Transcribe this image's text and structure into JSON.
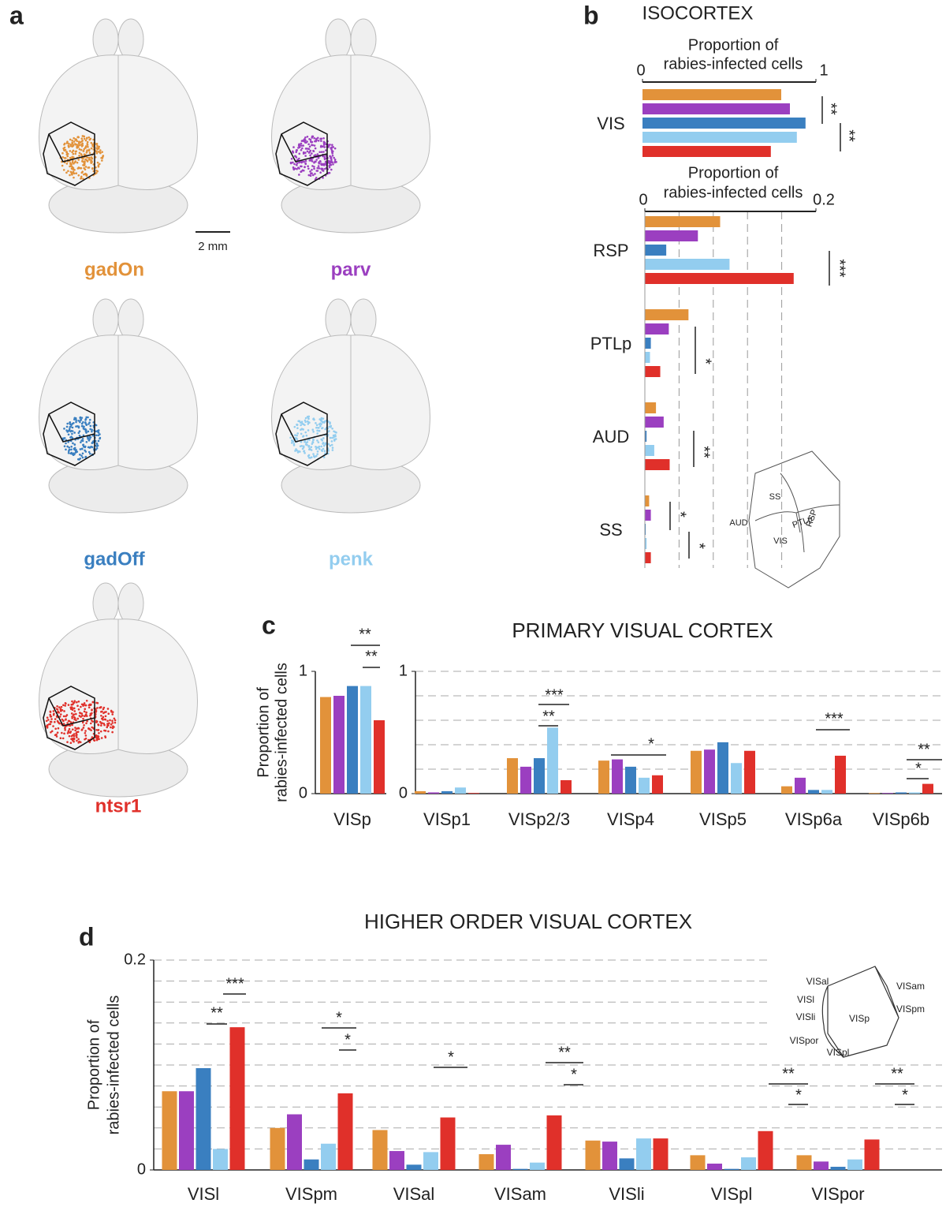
{
  "panel_labels": [
    "a",
    "b",
    "c",
    "d"
  ],
  "scale_bar": "2 mm",
  "chart_data": [
    {
      "type": "bar",
      "orientation": "horizontal",
      "title": "ISOCORTEX",
      "xlabel": [
        "Proportion of",
        "rabies-infected cells"
      ],
      "categories": [
        "VIS"
      ],
      "series": [
        {
          "name": "gadOn",
          "color": "#e2923a",
          "values": [
            0.8
          ]
        },
        {
          "name": "parv",
          "color": "#9b3fc0",
          "values": [
            0.85
          ]
        },
        {
          "name": "gadOff",
          "color": "#3a7fc0",
          "values": [
            0.94
          ]
        },
        {
          "name": "penk",
          "color": "#93cdef",
          "values": [
            0.89
          ]
        },
        {
          "name": "ntsr1",
          "color": "#e0302a",
          "values": [
            0.74
          ]
        }
      ],
      "xlim": [
        0,
        1
      ],
      "xticks": [
        0,
        1
      ],
      "annotations": [
        "**",
        "**"
      ]
    },
    {
      "type": "bar",
      "orientation": "horizontal",
      "xlabel": [
        "Proportion of",
        "rabies-infected cells"
      ],
      "categories": [
        "RSP",
        "PTLp",
        "AUD",
        "SS"
      ],
      "series": [
        {
          "color": "#e2923a",
          "values": [
            0.088,
            0.051,
            0.013,
            0.005
          ]
        },
        {
          "color": "#9b3fc0",
          "values": [
            0.062,
            0.028,
            0.022,
            0.007
          ]
        },
        {
          "color": "#3a7fc0",
          "values": [
            0.025,
            0.007,
            0.002,
            0.001
          ]
        },
        {
          "color": "#93cdef",
          "values": [
            0.099,
            0.006,
            0.011,
            0.002
          ]
        },
        {
          "color": "#e0302a",
          "values": [
            0.174,
            0.018,
            0.029,
            0.007
          ]
        }
      ],
      "xlim": [
        0,
        0.2
      ],
      "xticks": [
        0,
        0.2
      ],
      "xgrid": [
        0.04,
        0.08,
        0.12,
        0.16
      ],
      "annotations": [
        "***",
        "*",
        "**",
        "*",
        "*"
      ],
      "inset_labels": [
        "SS",
        "RSP",
        "PTLp",
        "AUD",
        "VIS"
      ]
    },
    {
      "type": "bar",
      "title": "PRIMARY VISUAL CORTEX",
      "ylabel": [
        "Proportion of",
        "rabies-infected cells"
      ],
      "categories": [
        "VISp",
        "VISp1",
        "VISp2/3",
        "VISp4",
        "VISp5",
        "VISp6a",
        "VISp6b"
      ],
      "series": [
        {
          "color": "#e2923a",
          "values": [
            0.79,
            0.02,
            0.29,
            0.27,
            0.35,
            0.06,
            0.005
          ]
        },
        {
          "color": "#9b3fc0",
          "values": [
            0.8,
            0.01,
            0.22,
            0.28,
            0.36,
            0.13,
            0.005
          ]
        },
        {
          "color": "#3a7fc0",
          "values": [
            0.88,
            0.02,
            0.29,
            0.22,
            0.42,
            0.03,
            0.01
          ]
        },
        {
          "color": "#93cdef",
          "values": [
            0.88,
            0.05,
            0.54,
            0.13,
            0.25,
            0.03,
            0.01
          ]
        },
        {
          "color": "#e0302a",
          "values": [
            0.6,
            0.005,
            0.11,
            0.15,
            0.35,
            0.31,
            0.08
          ]
        }
      ],
      "ylim": [
        0,
        1
      ],
      "yticks": [
        0,
        1
      ],
      "ygrid": [
        0.2,
        0.4,
        0.6,
        0.8,
        1
      ],
      "annotations": [
        "**",
        "**",
        "***",
        "**",
        "*",
        "***",
        "**",
        "*"
      ]
    },
    {
      "type": "bar",
      "title": "HIGHER ORDER VISUAL CORTEX",
      "ylabel": [
        "Proportion of",
        "rabies-infected cells"
      ],
      "categories": [
        "VISl",
        "VISpm",
        "VISal",
        "VISam",
        "VISli",
        "VISpl",
        "VISpor"
      ],
      "series": [
        {
          "color": "#e2923a",
          "values": [
            0.075,
            0.04,
            0.038,
            0.015,
            0.028,
            0.014,
            0.014
          ]
        },
        {
          "color": "#9b3fc0",
          "values": [
            0.075,
            0.053,
            0.018,
            0.024,
            0.027,
            0.006,
            0.008
          ]
        },
        {
          "color": "#3a7fc0",
          "values": [
            0.097,
            0.01,
            0.005,
            0.001,
            0.011,
            0.001,
            0.003
          ]
        },
        {
          "color": "#93cdef",
          "values": [
            0.02,
            0.025,
            0.017,
            0.007,
            0.03,
            0.012,
            0.01
          ]
        },
        {
          "color": "#e0302a",
          "values": [
            0.136,
            0.073,
            0.05,
            0.052,
            0.03,
            0.037,
            0.029
          ]
        }
      ],
      "ylim": [
        0,
        0.2
      ],
      "yticks": [
        0,
        0.2
      ],
      "ygrid": [
        0.02,
        0.04,
        0.06,
        0.08,
        0.1,
        0.12,
        0.14,
        0.16,
        0.18,
        0.2
      ],
      "annotations": [
        "**",
        "***",
        "*",
        "*",
        "*",
        "**",
        "*",
        "**",
        "*",
        "**",
        "*"
      ],
      "inset_labels": [
        "VISal",
        "VISl",
        "VISli",
        "VISp",
        "VISam",
        "VISpm",
        "VISpor",
        "VISpl"
      ]
    }
  ]
}
